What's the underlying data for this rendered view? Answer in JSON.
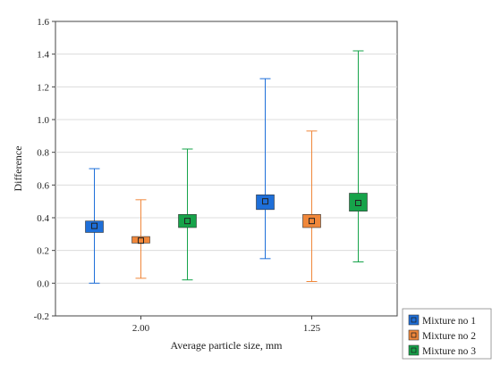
{
  "chart_data": {
    "type": "box-interval",
    "title": "",
    "xlabel": "Average particle size, mm",
    "ylabel": "Difference",
    "categories": [
      "2.00",
      "1.25"
    ],
    "ylim": [
      -0.2,
      1.6
    ],
    "yticks": [
      "-0.2",
      "0.0",
      "0.2",
      "0.4",
      "0.6",
      "0.8",
      "1.0",
      "1.2",
      "1.4",
      "1.6"
    ],
    "grid": true,
    "legend_position": "bottom-right-outside",
    "series": [
      {
        "name": "Mixture no 1",
        "color": "#1e6fd9",
        "mean": [
          0.35,
          0.5
        ],
        "box_low": [
          0.31,
          0.45
        ],
        "box_high": [
          0.38,
          0.54
        ],
        "whisker_low": [
          0.0,
          0.15
        ],
        "whisker_high": [
          0.7,
          1.25
        ]
      },
      {
        "name": "Mixture no 2",
        "color": "#f0873a",
        "mean": [
          0.26,
          0.38
        ],
        "box_low": [
          0.245,
          0.34
        ],
        "box_high": [
          0.285,
          0.42
        ],
        "whisker_low": [
          0.03,
          0.01
        ],
        "whisker_high": [
          0.51,
          0.93
        ]
      },
      {
        "name": "Mixture no 3",
        "color": "#16a34a",
        "mean": [
          0.38,
          0.49
        ],
        "box_low": [
          0.34,
          0.44
        ],
        "box_high": [
          0.42,
          0.55
        ],
        "whisker_low": [
          0.02,
          0.13
        ],
        "whisker_high": [
          0.82,
          1.42
        ]
      }
    ]
  }
}
